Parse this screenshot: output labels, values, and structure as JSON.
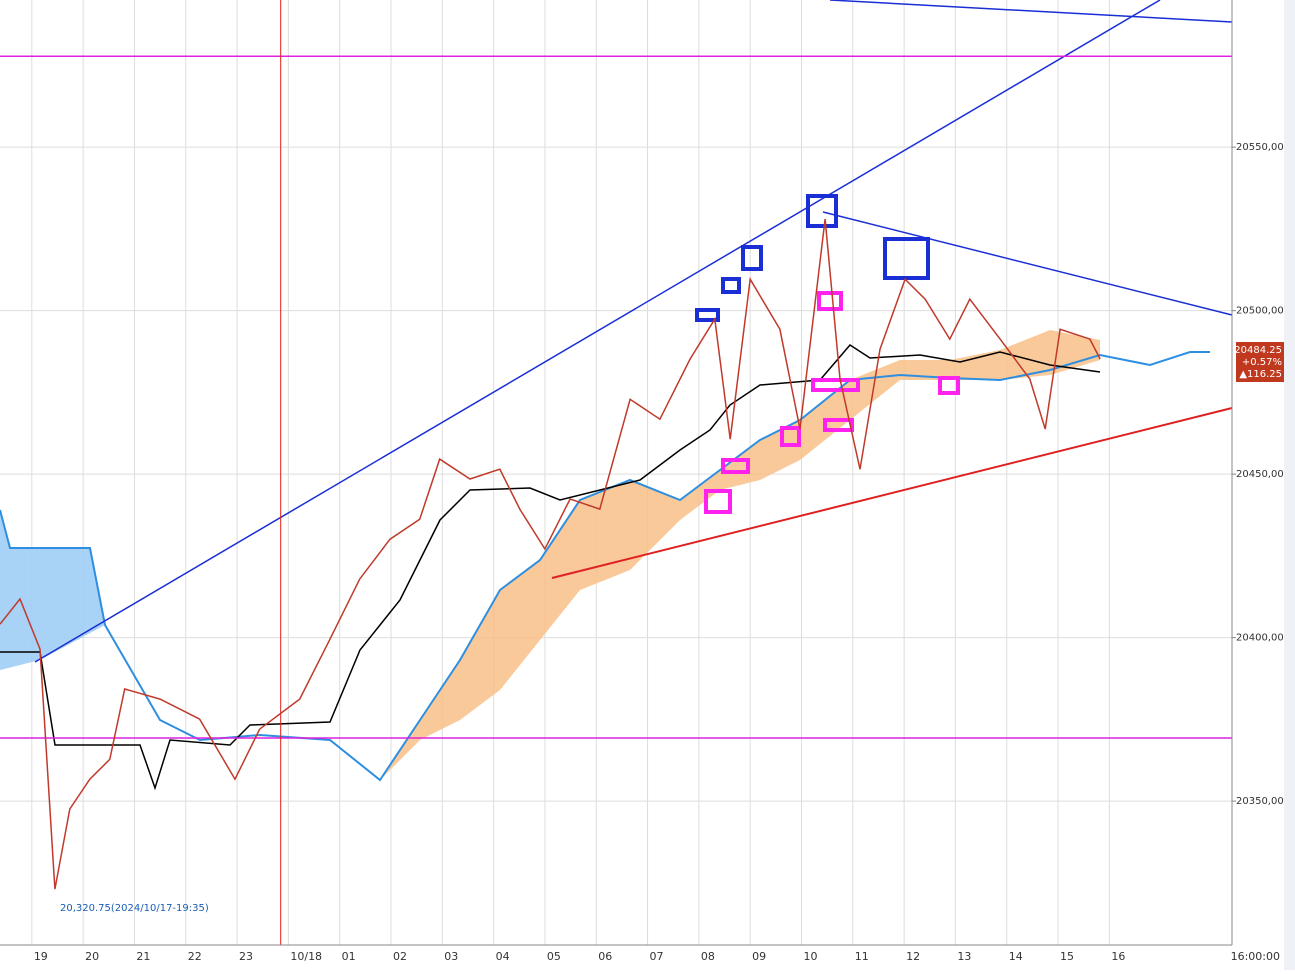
{
  "chart_data": {
    "type": "line",
    "x_categories": [
      "19",
      "20",
      "21",
      "22",
      "23",
      "10/18",
      "01",
      "02",
      "03",
      "04",
      "05",
      "06",
      "07",
      "08",
      "09",
      "10",
      "11",
      "12",
      "13",
      "14",
      "15",
      "16"
    ],
    "x_end_label": "16:00:00",
    "xlim": [
      -0.62,
      23.39
    ],
    "ylim": [
      20306,
      20595
    ],
    "yticks": [
      {
        "value": 20350,
        "label": "20350,00"
      },
      {
        "value": 20400,
        "label": "20400,00"
      },
      {
        "value": 20450,
        "label": "20450,00"
      },
      {
        "value": 20500,
        "label": "20500,00"
      },
      {
        "value": 20550,
        "label": "20550,00"
      }
    ],
    "grid": true,
    "series": [
      {
        "color": "#c0392b",
        "x": [
          -0.62,
          -0.23,
          0.16,
          0.45,
          0.74,
          1.13,
          1.52,
          1.81,
          2.5,
          3.27,
          3.96,
          4.44,
          5.22,
          5.81,
          6.39,
          6.98,
          7.56,
          7.95,
          8.54,
          9.12,
          9.51,
          10.0,
          10.49,
          11.07,
          11.66,
          12.24,
          12.83,
          13.31,
          13.61,
          14.0,
          14.58,
          14.97,
          15.46,
          15.75,
          16.14,
          16.53,
          17.02,
          17.41,
          17.89,
          18.28,
          18.87,
          19.45,
          19.75,
          20.04,
          20.62,
          20.82
        ],
        "values": [
          20404.1,
          20411.8,
          20396.5,
          20323.1,
          20347.6,
          20356.7,
          20362.8,
          20384.3,
          20381.2,
          20375.1,
          20356.7,
          20372,
          20381.2,
          20399.5,
          20417.9,
          20430.1,
          20436.2,
          20454.6,
          20448.5,
          20451.5,
          20439.3,
          20427.1,
          20442.4,
          20439.3,
          20472.9,
          20466.8,
          20485.2,
          20497.4,
          20460.7,
          20509.6,
          20494.3,
          20463.8,
          20528,
          20479.1,
          20451.5,
          20488.2,
          20509.6,
          20503.5,
          20491.3,
          20503.5,
          20491.3,
          20479.1,
          20463.8,
          20494.3,
          20491.3,
          20485.2
        ]
      }
    ],
    "hlines": [
      20577.8,
      20369.3
    ],
    "vline": 4.85,
    "low_annotation": "20,320.75(2024/10/17-19:35)",
    "price_labels": [
      "20484.25",
      "+0.57%",
      "▲116.25"
    ]
  }
}
